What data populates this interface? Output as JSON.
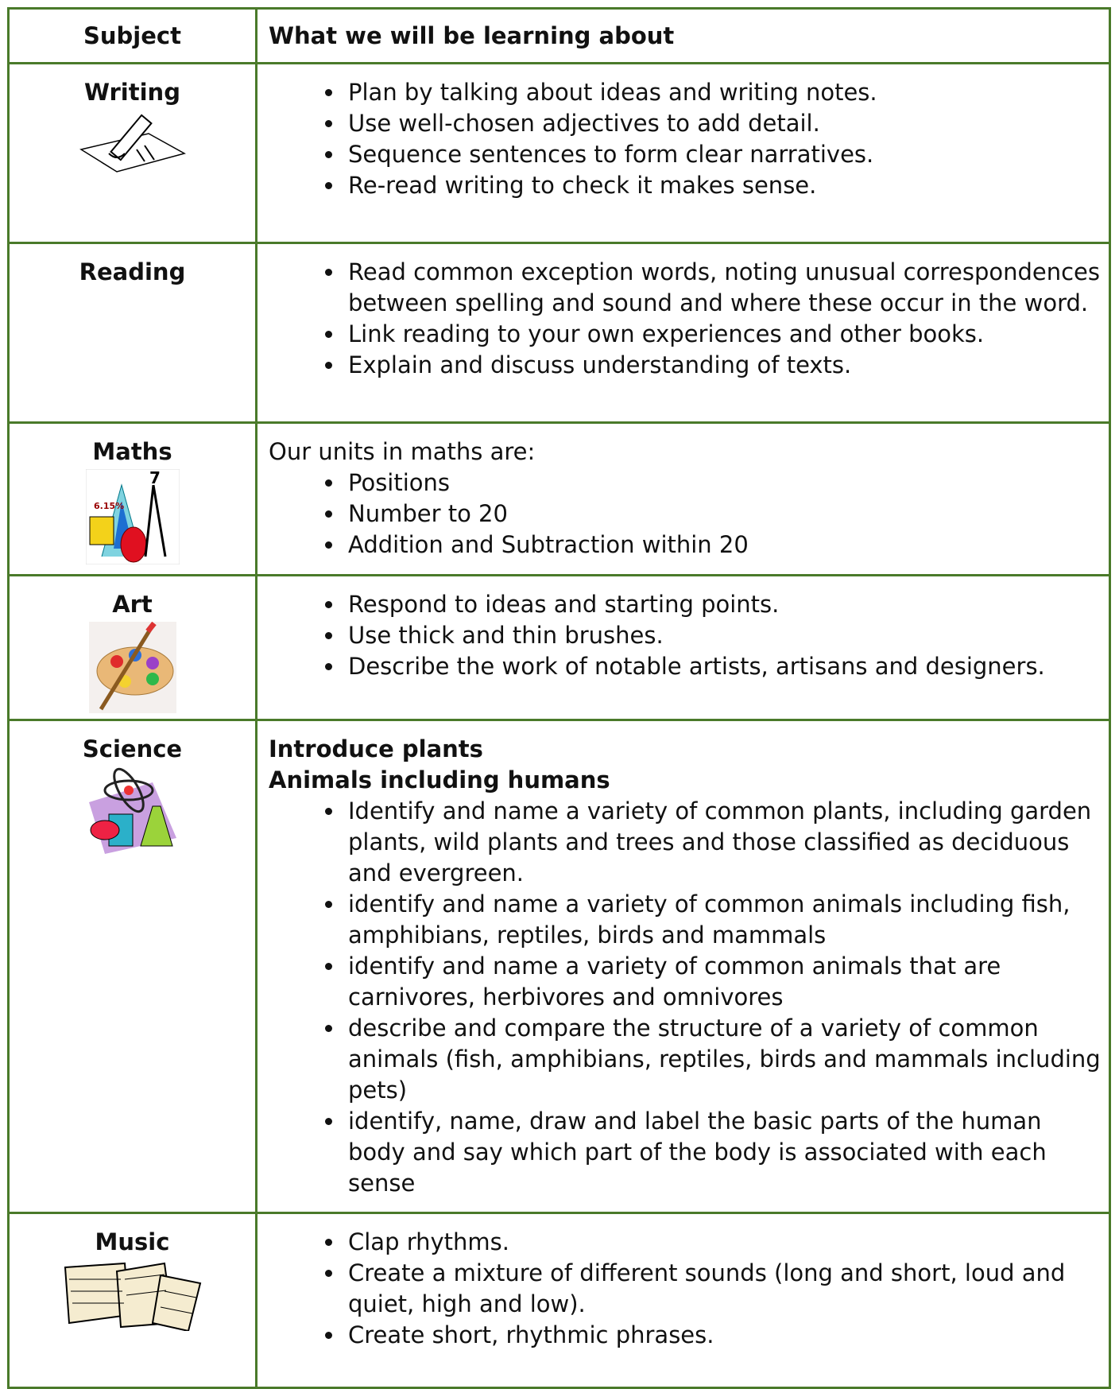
{
  "header": {
    "subject": "Subject",
    "learning": "What we will be learning about"
  },
  "rows": [
    {
      "subject": "Writing",
      "bullets": [
        "Plan by talking about ideas and writing notes.",
        "Use well-chosen adjectives to add detail.",
        "Sequence sentences to form clear narratives.",
        "Re-read writing to check it makes sense."
      ]
    },
    {
      "subject": "Reading",
      "bullets": [
        "Read common exception words, noting unusual correspondences between spelling and sound and where these occur in the word.",
        "Link reading to your own experiences and other books.",
        "Explain and discuss understanding of texts."
      ]
    },
    {
      "subject": "Maths",
      "intro": "Our units in maths are:",
      "bullets": [
        "Positions",
        "Number to 20",
        "Addition and Subtraction within 20"
      ]
    },
    {
      "subject": "Art",
      "bullets": [
        "Respond to ideas and starting points.",
        "Use thick and thin brushes.",
        "Describe the work of notable artists, artisans and designers."
      ]
    },
    {
      "subject": "Science",
      "headings": [
        "Introduce plants",
        "Animals including humans"
      ],
      "bullets": [
        "Identify and name a variety of common plants, including garden plants, wild plants and trees and those classified as deciduous and evergreen.",
        "identify and name a variety of common animals including fish, amphibians, reptiles, birds and mammals",
        "identify and name a variety of common animals that are carnivores, herbivores and omnivores",
        "describe and compare the structure of a variety of common animals (fish, amphibians, reptiles, birds and mammals including pets)",
        "identify, name, draw and label the basic parts of the human body and say which part of the body is associated with each sense"
      ]
    },
    {
      "subject": "Music",
      "bullets": [
        "Clap rhythms.",
        "Create a mixture of different sounds (long and short, loud and quiet, high and low).",
        "Create short, rhythmic phrases."
      ]
    }
  ]
}
